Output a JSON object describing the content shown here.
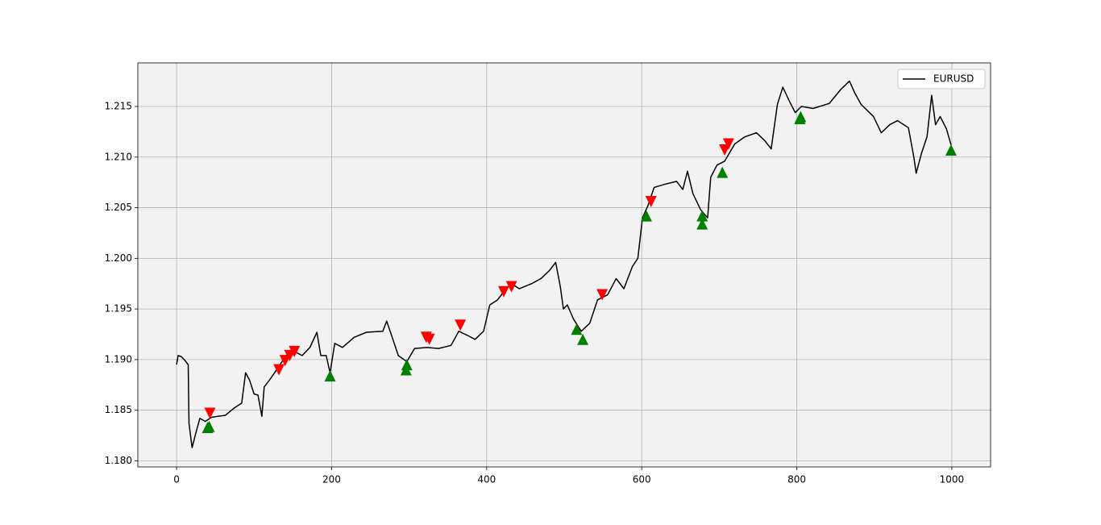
{
  "chart_data": {
    "type": "line",
    "xlim": [
      -50,
      1050
    ],
    "xticks": [
      0,
      200,
      400,
      600,
      800,
      1000
    ],
    "ylim": [
      1.1794,
      1.2193
    ],
    "yticks": [
      {
        "value": 1.18,
        "label": "1.180"
      },
      1.185,
      {
        "value": 1.19,
        "label": "1.190"
      },
      1.195,
      {
        "value": 1.2,
        "label": "1.200"
      },
      1.205,
      {
        "value": 1.21,
        "label": "1.210"
      },
      1.215
    ],
    "grid": true,
    "legend": "upper right",
    "series": [
      {
        "name": "EURUSD",
        "color": "black",
        "x": [
          0,
          2,
          6,
          11,
          15,
          16,
          20,
          24,
          30,
          37,
          45,
          53,
          63,
          74,
          84,
          89,
          94,
          100,
          105,
          110,
          113,
          120,
          131,
          141,
          152,
          162,
          172,
          181,
          186,
          193,
          198,
          204,
          214,
          229,
          245,
          266,
          271,
          279,
          286,
          297,
          307,
          323,
          338,
          354,
          364,
          375,
          385,
          396,
          404,
          414,
          422,
          432,
          442,
          458,
          470,
          481,
          489,
          495,
          499,
          504,
          512,
          522,
          533,
          543,
          556,
          567,
          577,
          588,
          595,
          601,
          608,
          616,
          629,
          645,
          653,
          659,
          666,
          676,
          685,
          689,
          697,
          707,
          720,
          733,
          748,
          759,
          767,
          775,
          782,
          790,
          798,
          806,
          821,
          842,
          857,
          868,
          875,
          883,
          899,
          909,
          920,
          930,
          944,
          951,
          954,
          961,
          968,
          974,
          979,
          985,
          993,
          999
        ],
        "values": [
          1.1895,
          1.1904,
          1.1903,
          1.1899,
          1.1895,
          1.1837,
          1.1813,
          1.1825,
          1.1842,
          1.1839,
          1.1843,
          1.1844,
          1.1845,
          1.1852,
          1.1857,
          1.1887,
          1.188,
          1.1866,
          1.1865,
          1.1844,
          1.1873,
          1.188,
          1.1892,
          1.1904,
          1.1908,
          1.1904,
          1.1912,
          1.1927,
          1.1904,
          1.1904,
          1.1887,
          1.1916,
          1.1912,
          1.1922,
          1.1927,
          1.1928,
          1.1938,
          1.192,
          1.1904,
          1.1898,
          1.1911,
          1.1912,
          1.1911,
          1.1914,
          1.1928,
          1.1924,
          1.192,
          1.1928,
          1.1954,
          1.1959,
          1.1967,
          1.1975,
          1.197,
          1.1975,
          1.198,
          1.1988,
          1.1996,
          1.1972,
          1.195,
          1.1954,
          1.194,
          1.1928,
          1.1936,
          1.1959,
          1.1964,
          1.198,
          1.197,
          1.1992,
          1.2,
          1.204,
          1.2052,
          1.207,
          1.2073,
          1.2076,
          1.2068,
          1.2086,
          1.2064,
          1.2048,
          1.204,
          1.208,
          1.2092,
          1.2096,
          1.2113,
          1.212,
          1.2124,
          1.2116,
          1.2108,
          1.2152,
          1.2169,
          1.2156,
          1.2144,
          1.215,
          1.2148,
          1.2153,
          1.2167,
          1.2175,
          1.2163,
          1.2152,
          1.214,
          1.2124,
          1.2132,
          1.2136,
          1.2129,
          1.21,
          1.2084,
          1.2104,
          1.212,
          1.2161,
          1.2132,
          1.214,
          1.2128,
          1.2112
        ]
      },
      {
        "marker": "v",
        "color": "red",
        "x": [
          43,
          132,
          140,
          146,
          152,
          322,
          326,
          366,
          422,
          432,
          549,
          612,
          707,
          712
        ],
        "values": [
          1.1847,
          1.189,
          1.1899,
          1.1904,
          1.1908,
          1.1922,
          1.192,
          1.1934,
          1.1967,
          1.1972,
          1.1964,
          1.2056,
          1.2107,
          1.2113
        ]
      },
      {
        "marker": "^",
        "color": "green",
        "x": [
          40,
          42,
          198,
          296,
          297,
          516,
          524,
          606,
          678,
          678,
          704,
          804,
          805,
          999
        ],
        "values": [
          1.1833,
          1.1834,
          1.1884,
          1.189,
          1.1895,
          1.193,
          1.192,
          1.2042,
          1.2042,
          1.2034,
          1.2085,
          1.2138,
          1.214,
          1.2107
        ]
      }
    ]
  }
}
